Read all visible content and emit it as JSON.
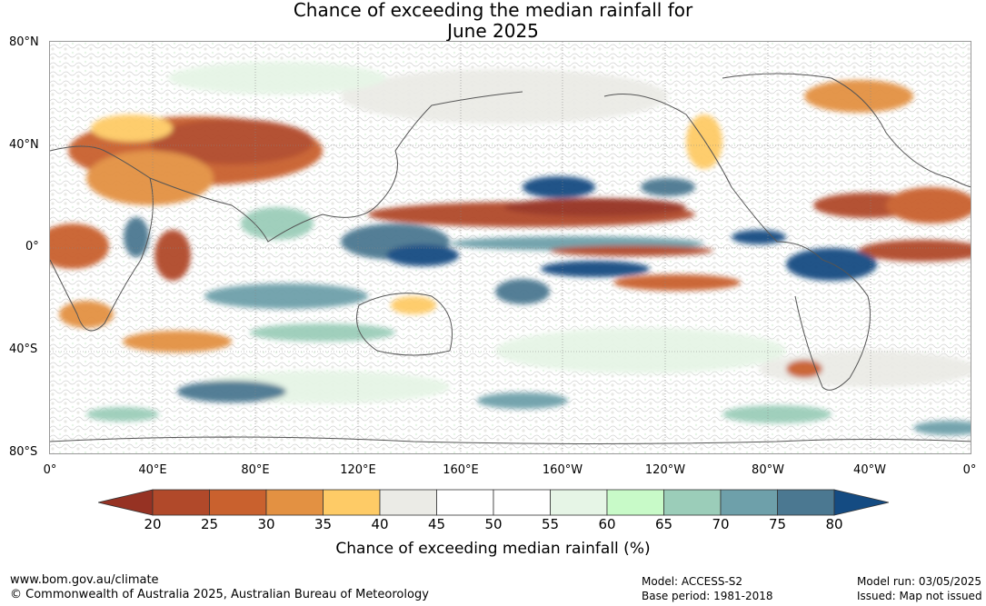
{
  "title_line1": "Chance of exceeding the median rainfall for",
  "title_line2": "June 2025",
  "lat_labels": [
    "80°N",
    "40°N",
    "0°",
    "40°S",
    "80°S"
  ],
  "lon_labels": [
    "0°",
    "40°E",
    "80°E",
    "120°E",
    "160°E",
    "160°W",
    "120°W",
    "80°W",
    "40°W",
    "0°"
  ],
  "colorbar": {
    "ticks": [
      "20",
      "25",
      "30",
      "35",
      "40",
      "45",
      "50",
      "55",
      "60",
      "65",
      "70",
      "75",
      "80"
    ],
    "colors": [
      "#b1492a",
      "#c9612e",
      "#e39142",
      "#fecb66",
      "#ebebe6",
      "#ffffff",
      "#ffffff",
      "#e6f5e6",
      "#c8fac8",
      "#9bcdb9",
      "#6ea0aa",
      "#4b7891"
    ],
    "low_color": "#963223",
    "high_color": "#144b82",
    "label": "Chance of exceeding median rainfall (%)"
  },
  "footer": {
    "url": "www.bom.gov.au/climate",
    "copyright": "© Commonwealth of Australia 2025, Australian Bureau of Meteorology",
    "model": "Model: ACCESS-S2",
    "base_period": "Base period: 1981-2018",
    "model_run": "Model run: 03/05/2025",
    "issued": "Issued: Map not issued"
  }
}
